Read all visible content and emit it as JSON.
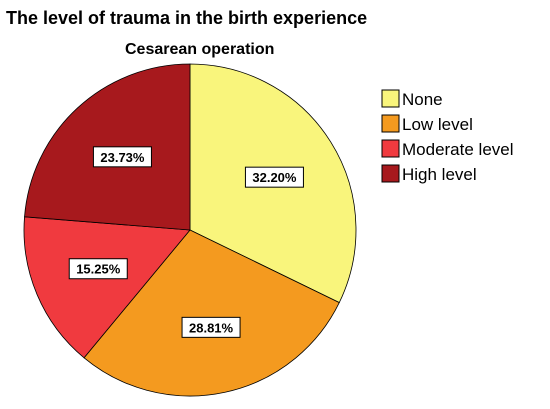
{
  "chart_data": {
    "type": "pie",
    "title": "The level of trauma in the birth experience",
    "subtitle": "Cesarean operation",
    "categories": [
      "None",
      "Low level",
      "Moderate level",
      "High level"
    ],
    "values": [
      32.2,
      28.81,
      15.25,
      23.73
    ],
    "data_labels": [
      "32.20%",
      "28.81%",
      "15.25%",
      "23.73%"
    ],
    "colors": [
      "#f9f57c",
      "#f49a1f",
      "#f03a3f",
      "#a7191d"
    ],
    "legend_position": "right",
    "start_angle": "top, clockwise"
  }
}
